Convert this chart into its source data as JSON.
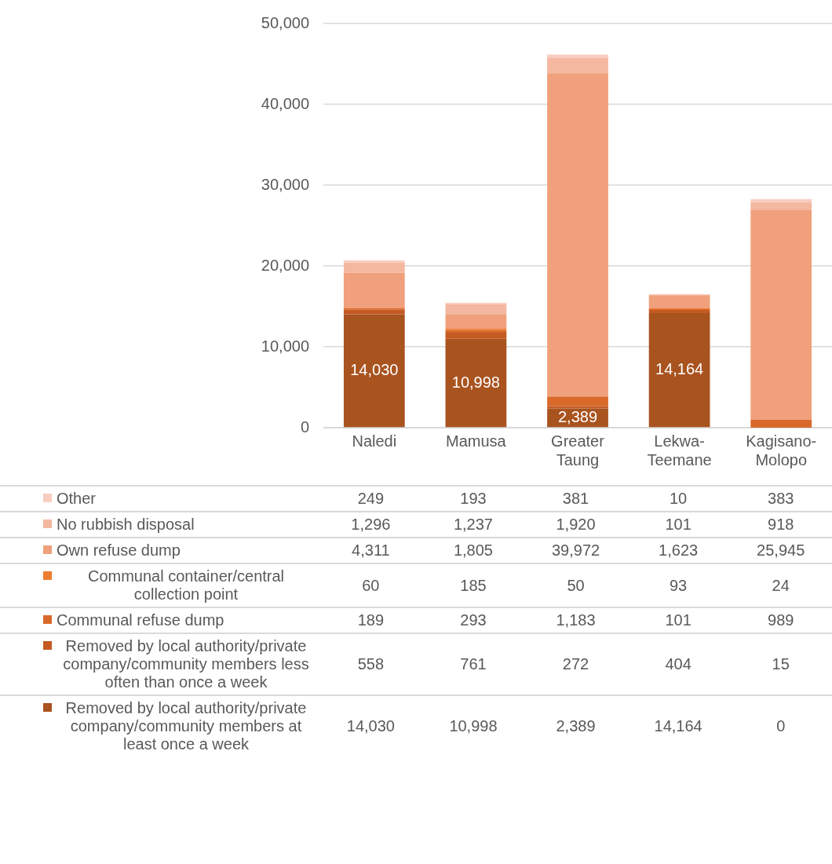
{
  "chart_data": {
    "type": "bar",
    "stacked": true,
    "categories": [
      "Naledi",
      "Mamusa",
      "Greater Taung",
      "Lekwa-Teemane",
      "Kagisano-Molopo"
    ],
    "series": [
      {
        "name": "Removed by local authority/private company/community members at least once a week",
        "color": "#a9531f",
        "values": [
          14030,
          10998,
          2389,
          14164,
          0
        ],
        "value_labels": [
          "14,030",
          "10,998",
          "2,389",
          "14,164",
          "0"
        ]
      },
      {
        "name": "Removed by local authority/private company/community members less often than once a week",
        "color": "#c55a23",
        "values": [
          558,
          761,
          272,
          404,
          15
        ],
        "value_labels": [
          "558",
          "761",
          "272",
          "404",
          "15"
        ]
      },
      {
        "name": "Communal refuse dump",
        "color": "#d9692a",
        "values": [
          189,
          293,
          1183,
          101,
          989
        ],
        "value_labels": [
          "189",
          "293",
          "1,183",
          "101",
          "989"
        ]
      },
      {
        "name": "Communal container/central collection point",
        "color": "#ed7d31",
        "values": [
          60,
          185,
          50,
          93,
          24
        ],
        "value_labels": [
          "60",
          "185",
          "50",
          "93",
          "24"
        ]
      },
      {
        "name": "Own refuse dump",
        "color": "#f0a07c",
        "values": [
          4311,
          1805,
          39972,
          1623,
          25945
        ],
        "value_labels": [
          "4,311",
          "1,805",
          "39,972",
          "1,623",
          "25,945"
        ]
      },
      {
        "name": "No rubbish disposal",
        "color": "#f4b7a0",
        "values": [
          1296,
          1237,
          1920,
          101,
          918
        ],
        "value_labels": [
          "1,296",
          "1,237",
          "1,920",
          "101",
          "918"
        ]
      },
      {
        "name": "Other",
        "color": "#f8cdbf",
        "values": [
          249,
          193,
          381,
          10,
          383
        ],
        "value_labels": [
          "249",
          "193",
          "381",
          "10",
          "383"
        ]
      }
    ],
    "ylim": [
      0,
      50000
    ],
    "yticks": [
      {
        "value": 0,
        "label": "0"
      },
      {
        "value": 10000,
        "label": "10,000"
      },
      {
        "value": 20000,
        "label": "20,000"
      },
      {
        "value": 30000,
        "label": "30,000"
      },
      {
        "value": 40000,
        "label": "40,000"
      },
      {
        "value": 50000,
        "label": "50,000"
      }
    ],
    "grid": "y",
    "legend": "bottom"
  }
}
